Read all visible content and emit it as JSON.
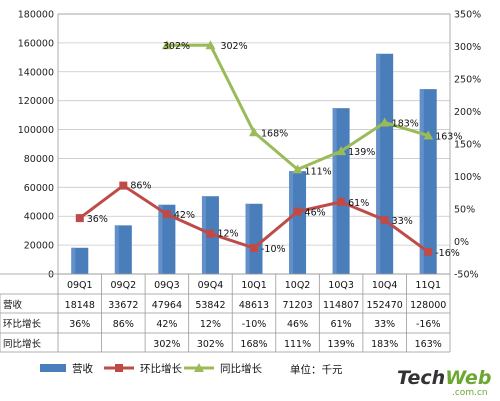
{
  "chart_data": {
    "type": "bar",
    "categories": [
      "09Q1",
      "09Q2",
      "09Q3",
      "09Q4",
      "10Q1",
      "10Q2",
      "10Q3",
      "10Q4",
      "11Q1"
    ],
    "left_axis": {
      "min": 0,
      "max": 180000,
      "step": 20000,
      "ticks": [
        "0",
        "20000",
        "40000",
        "60000",
        "80000",
        "100000",
        "120000",
        "140000",
        "160000",
        "180000"
      ]
    },
    "right_axis": {
      "min": -50,
      "max": 350,
      "step": 50,
      "ticks": [
        "-50%",
        "0%",
        "50%",
        "100%",
        "150%",
        "200%",
        "250%",
        "300%",
        "350%"
      ]
    },
    "grid": true,
    "legend_position": "bottom",
    "unit_note": "单位：千元",
    "series": [
      {
        "name": "营收",
        "kind": "bar",
        "axis": "left",
        "color": "#4a7ebb",
        "values": [
          18148,
          33672,
          47964,
          53842,
          48613,
          71203,
          114807,
          152470,
          128000
        ],
        "table_text": [
          "18148",
          "33672",
          "47964",
          "53842",
          "48613",
          "71203",
          "114807",
          "152470",
          "128000"
        ]
      },
      {
        "name": "环比增长",
        "kind": "line",
        "axis": "right",
        "color": "#be4b48",
        "values": [
          36,
          86,
          42,
          12,
          -10,
          46,
          61,
          33,
          -16
        ],
        "labels": [
          "36%",
          "86%",
          "42%",
          "12%",
          "-10%",
          "46%",
          "61%",
          "33%",
          "-16%"
        ]
      },
      {
        "name": "同比增长",
        "kind": "line",
        "axis": "right",
        "color": "#9bbb59",
        "values": [
          null,
          null,
          302,
          302,
          168,
          111,
          139,
          183,
          163
        ],
        "labels": [
          "",
          "",
          "302%",
          "302%",
          "168%",
          "111%",
          "139%",
          "183%",
          "163%"
        ]
      }
    ]
  },
  "watermark": {
    "main_tech": "Tech",
    "main_web": "Web",
    "sub": ".com.cn"
  }
}
